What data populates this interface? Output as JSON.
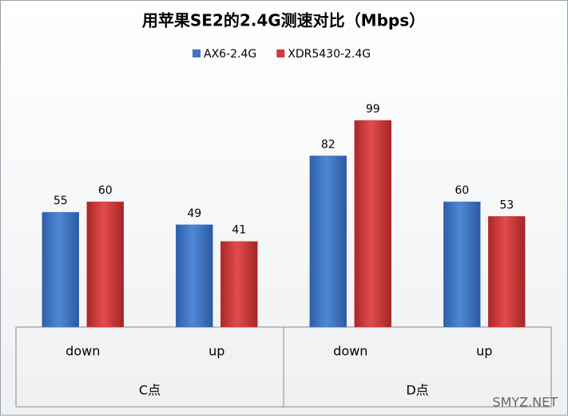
{
  "chart_data": {
    "type": "bar",
    "title": "用苹果SE2的2.4G测速对比（Mbps）",
    "categories": [
      "down",
      "up",
      "down",
      "up"
    ],
    "groups": [
      {
        "label": "C点",
        "size": 2
      },
      {
        "label": "D点",
        "size": 2
      }
    ],
    "series": [
      {
        "name": "AX6-2.4G",
        "color": "#3f76c4",
        "values": [
          55,
          49,
          82,
          60
        ]
      },
      {
        "name": "XDR5430-2.4G",
        "color": "#d13a3a",
        "values": [
          60,
          41,
          99,
          53
        ]
      }
    ],
    "ylim": [
      0,
      120
    ],
    "legend": "top",
    "watermark": "SMYZ.NET"
  }
}
